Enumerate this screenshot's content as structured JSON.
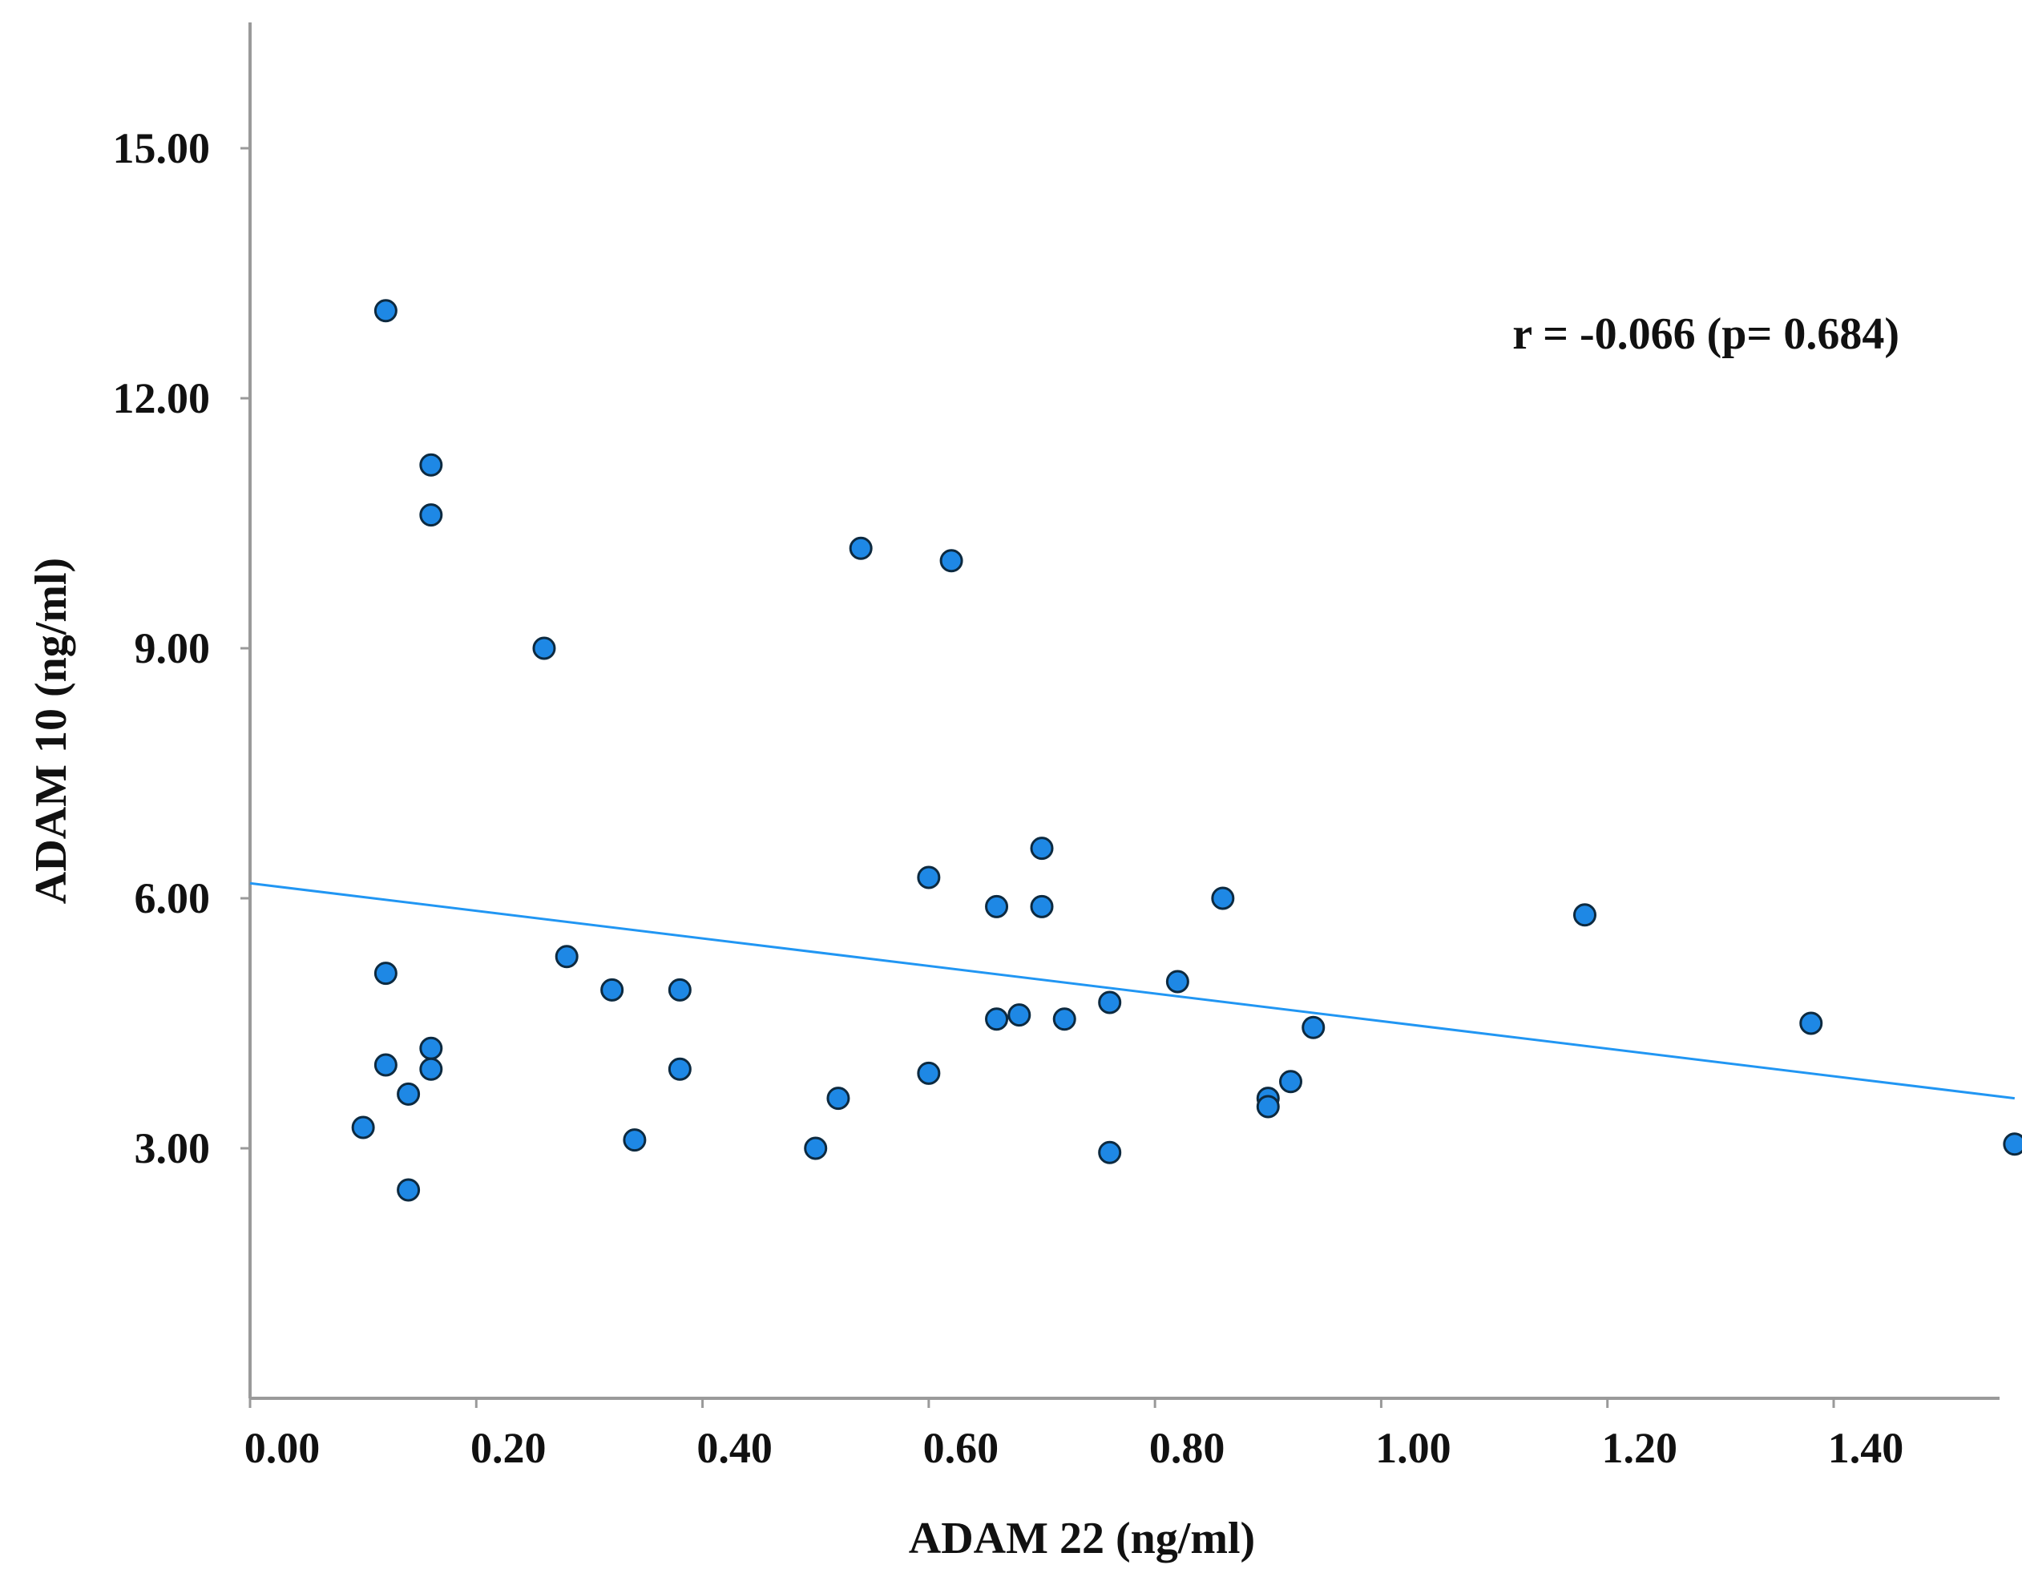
{
  "colors": {
    "point_fill": "#1E88E5",
    "point_stroke": "#0d2a40",
    "fit_line": "#2196F3",
    "axis": "#9a9a9a",
    "text": "#111111"
  },
  "chart_data": {
    "type": "scatter",
    "title": "",
    "xlabel": "ADAM 22 (ng/ml)",
    "ylabel": "ADAM 10 (ng/ml)",
    "xlim": [
      0.0,
      1.56
    ],
    "ylim": [
      0.0,
      16.8
    ],
    "xticks": [
      0.0,
      0.2,
      0.4,
      0.6,
      0.8,
      1.0,
      1.2,
      1.4
    ],
    "xtick_labels": [
      "0.00",
      "0.20",
      "0.40",
      "0.60",
      "0.80",
      "1.00",
      "1.20",
      "1.40"
    ],
    "yticks": [
      3.0,
      6.0,
      9.0,
      12.0,
      15.0
    ],
    "ytick_labels": [
      "3.00",
      "6.00",
      "9.00",
      "12.00",
      "15.00"
    ],
    "grid": false,
    "annotation": "r = -0.066 (p= 0.684)",
    "fit_line": {
      "x": [
        0.0,
        1.56
      ],
      "y": [
        6.18,
        3.6
      ]
    },
    "points": [
      {
        "x": 0.12,
        "y": 13.05
      },
      {
        "x": 0.16,
        "y": 11.2
      },
      {
        "x": 0.16,
        "y": 10.6
      },
      {
        "x": 0.12,
        "y": 5.1
      },
      {
        "x": 0.12,
        "y": 4.0
      },
      {
        "x": 0.16,
        "y": 4.2
      },
      {
        "x": 0.16,
        "y": 3.95
      },
      {
        "x": 0.14,
        "y": 3.65
      },
      {
        "x": 0.1,
        "y": 3.25
      },
      {
        "x": 0.14,
        "y": 2.5
      },
      {
        "x": 0.26,
        "y": 9.0
      },
      {
        "x": 0.28,
        "y": 5.3
      },
      {
        "x": 0.32,
        "y": 4.9
      },
      {
        "x": 0.34,
        "y": 3.1
      },
      {
        "x": 0.38,
        "y": 4.9
      },
      {
        "x": 0.38,
        "y": 3.95
      },
      {
        "x": 0.5,
        "y": 3.0
      },
      {
        "x": 0.52,
        "y": 3.6
      },
      {
        "x": 0.54,
        "y": 10.2
      },
      {
        "x": 0.6,
        "y": 6.25
      },
      {
        "x": 0.6,
        "y": 3.9
      },
      {
        "x": 0.62,
        "y": 10.05
      },
      {
        "x": 0.66,
        "y": 5.9
      },
      {
        "x": 0.66,
        "y": 4.55
      },
      {
        "x": 0.68,
        "y": 4.6
      },
      {
        "x": 0.7,
        "y": 6.6
      },
      {
        "x": 0.7,
        "y": 5.9
      },
      {
        "x": 0.72,
        "y": 4.55
      },
      {
        "x": 0.76,
        "y": 4.75
      },
      {
        "x": 0.76,
        "y": 2.95
      },
      {
        "x": 0.82,
        "y": 5.0
      },
      {
        "x": 0.86,
        "y": 6.0
      },
      {
        "x": 0.9,
        "y": 3.6
      },
      {
        "x": 0.9,
        "y": 3.5
      },
      {
        "x": 0.92,
        "y": 3.8
      },
      {
        "x": 0.94,
        "y": 4.45
      },
      {
        "x": 1.18,
        "y": 5.8
      },
      {
        "x": 1.38,
        "y": 4.5
      },
      {
        "x": 1.56,
        "y": 3.05
      }
    ]
  }
}
